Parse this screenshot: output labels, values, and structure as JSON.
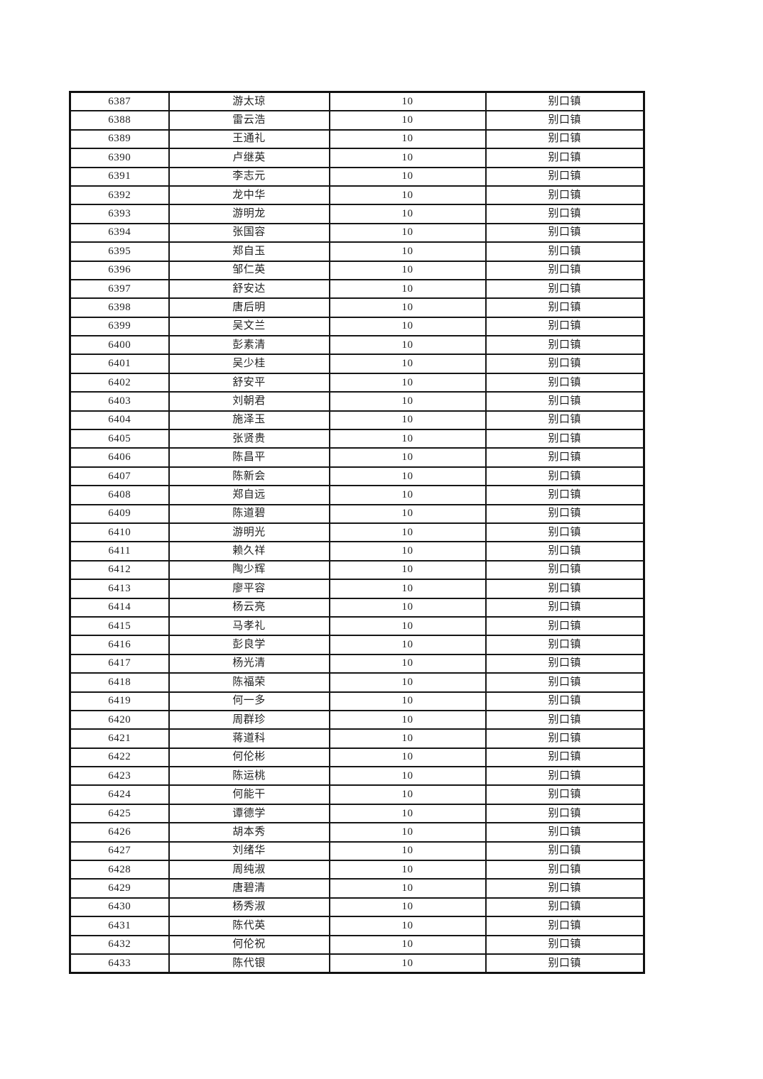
{
  "table": {
    "value_label": "10",
    "town_label": "别口镇",
    "rows": [
      {
        "id": "6387",
        "name": "游太琼",
        "value": "10",
        "town": "别口镇"
      },
      {
        "id": "6388",
        "name": "雷云浩",
        "value": "10",
        "town": "别口镇"
      },
      {
        "id": "6389",
        "name": "王通礼",
        "value": "10",
        "town": "别口镇"
      },
      {
        "id": "6390",
        "name": "卢继英",
        "value": "10",
        "town": "别口镇"
      },
      {
        "id": "6391",
        "name": "李志元",
        "value": "10",
        "town": "别口镇"
      },
      {
        "id": "6392",
        "name": "龙中华",
        "value": "10",
        "town": "别口镇"
      },
      {
        "id": "6393",
        "name": "游明龙",
        "value": "10",
        "town": "别口镇"
      },
      {
        "id": "6394",
        "name": "张国容",
        "value": "10",
        "town": "别口镇"
      },
      {
        "id": "6395",
        "name": "郑自玉",
        "value": "10",
        "town": "别口镇"
      },
      {
        "id": "6396",
        "name": "邹仁英",
        "value": "10",
        "town": "别口镇"
      },
      {
        "id": "6397",
        "name": "舒安达",
        "value": "10",
        "town": "别口镇"
      },
      {
        "id": "6398",
        "name": "唐后明",
        "value": "10",
        "town": "别口镇"
      },
      {
        "id": "6399",
        "name": "吴文兰",
        "value": "10",
        "town": "别口镇"
      },
      {
        "id": "6400",
        "name": "彭素清",
        "value": "10",
        "town": "别口镇"
      },
      {
        "id": "6401",
        "name": "吴少桂",
        "value": "10",
        "town": "别口镇"
      },
      {
        "id": "6402",
        "name": "舒安平",
        "value": "10",
        "town": "别口镇"
      },
      {
        "id": "6403",
        "name": "刘朝君",
        "value": "10",
        "town": "别口镇"
      },
      {
        "id": "6404",
        "name": "施泽玉",
        "value": "10",
        "town": "别口镇"
      },
      {
        "id": "6405",
        "name": "张贤贵",
        "value": "10",
        "town": "别口镇"
      },
      {
        "id": "6406",
        "name": "陈昌平",
        "value": "10",
        "town": "别口镇"
      },
      {
        "id": "6407",
        "name": "陈新会",
        "value": "10",
        "town": "别口镇"
      },
      {
        "id": "6408",
        "name": "郑自远",
        "value": "10",
        "town": "别口镇"
      },
      {
        "id": "6409",
        "name": "陈道碧",
        "value": "10",
        "town": "别口镇"
      },
      {
        "id": "6410",
        "name": "游明光",
        "value": "10",
        "town": "别口镇"
      },
      {
        "id": "6411",
        "name": "赖久祥",
        "value": "10",
        "town": "别口镇"
      },
      {
        "id": "6412",
        "name": "陶少辉",
        "value": "10",
        "town": "别口镇"
      },
      {
        "id": "6413",
        "name": "廖平容",
        "value": "10",
        "town": "别口镇"
      },
      {
        "id": "6414",
        "name": "杨云亮",
        "value": "10",
        "town": "别口镇"
      },
      {
        "id": "6415",
        "name": "马孝礼",
        "value": "10",
        "town": "别口镇"
      },
      {
        "id": "6416",
        "name": "彭良学",
        "value": "10",
        "town": "别口镇"
      },
      {
        "id": "6417",
        "name": "杨光清",
        "value": "10",
        "town": "别口镇"
      },
      {
        "id": "6418",
        "name": "陈福荣",
        "value": "10",
        "town": "别口镇"
      },
      {
        "id": "6419",
        "name": "何一多",
        "value": "10",
        "town": "别口镇"
      },
      {
        "id": "6420",
        "name": "周群珍",
        "value": "10",
        "town": "别口镇"
      },
      {
        "id": "6421",
        "name": "蒋道科",
        "value": "10",
        "town": "别口镇"
      },
      {
        "id": "6422",
        "name": "何伦彬",
        "value": "10",
        "town": "别口镇"
      },
      {
        "id": "6423",
        "name": "陈运桃",
        "value": "10",
        "town": "别口镇"
      },
      {
        "id": "6424",
        "name": "何能干",
        "value": "10",
        "town": "别口镇"
      },
      {
        "id": "6425",
        "name": "谭德学",
        "value": "10",
        "town": "别口镇"
      },
      {
        "id": "6426",
        "name": "胡本秀",
        "value": "10",
        "town": "别口镇"
      },
      {
        "id": "6427",
        "name": "刘绪华",
        "value": "10",
        "town": "别口镇"
      },
      {
        "id": "6428",
        "name": "周纯淑",
        "value": "10",
        "town": "别口镇"
      },
      {
        "id": "6429",
        "name": "唐碧清",
        "value": "10",
        "town": "别口镇"
      },
      {
        "id": "6430",
        "name": "杨秀淑",
        "value": "10",
        "town": "别口镇"
      },
      {
        "id": "6431",
        "name": "陈代英",
        "value": "10",
        "town": "别口镇"
      },
      {
        "id": "6432",
        "name": "何伦祝",
        "value": "10",
        "town": "别口镇"
      },
      {
        "id": "6433",
        "name": "陈代银",
        "value": "10",
        "town": "别口镇"
      }
    ]
  },
  "colors": {
    "border": "#161616",
    "text": "#1f1f1f",
    "page_background": "#ffffff"
  }
}
